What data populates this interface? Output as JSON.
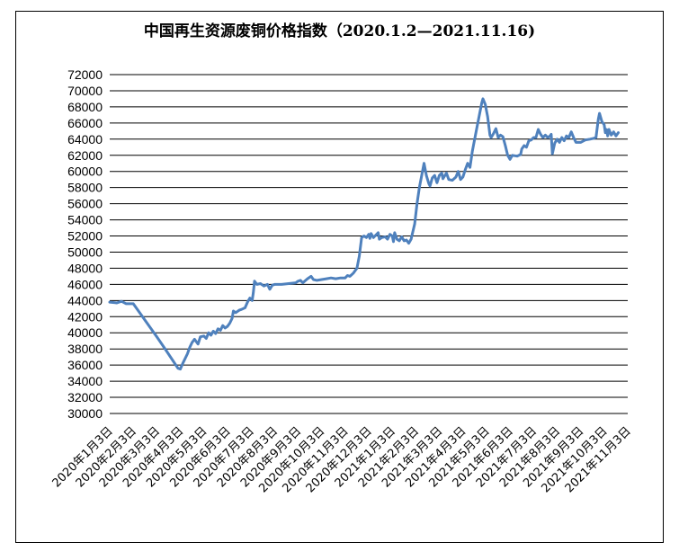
{
  "chart_data": {
    "type": "line",
    "title": "中国再生资源废铜价格指数（2020.1.2—2021.11.16)",
    "xlabel": "",
    "ylabel": "",
    "ylim": [
      30000,
      72000
    ],
    "yticks": [
      30000,
      32000,
      34000,
      36000,
      38000,
      40000,
      42000,
      44000,
      46000,
      48000,
      50000,
      52000,
      54000,
      56000,
      58000,
      60000,
      62000,
      64000,
      66000,
      68000,
      70000,
      72000
    ],
    "grid": true,
    "legend": "none",
    "line_color": "#4f81bd",
    "categories": [
      "2020年1月3日",
      "2020年2月3日",
      "2020年3月3日",
      "2020年4月3日",
      "2020年5月3日",
      "2020年6月3日",
      "2020年7月3日",
      "2020年8月3日",
      "2020年9月3日",
      "2020年10月3日",
      "2020年11月3日",
      "2020年12月3日",
      "2021年1月3日",
      "2021年2月3日",
      "2021年3月3日",
      "2021年4月3日",
      "2021年5月3日",
      "2021年6月3日",
      "2021年7月3日",
      "2021年8月3日",
      "2021年9月3日",
      "2021年10月3日",
      "2021年11月3日"
    ],
    "series": [
      {
        "values": [
          [
            0.0,
            43800
          ],
          [
            0.3,
            43700
          ],
          [
            0.5,
            43900
          ],
          [
            0.7,
            43600
          ],
          [
            1.0,
            43600
          ],
          [
            2.0,
            39500
          ],
          [
            2.4,
            37800
          ],
          [
            2.9,
            35600
          ],
          [
            3.0,
            35500
          ],
          [
            3.1,
            36200
          ],
          [
            3.3,
            37400
          ],
          [
            3.4,
            38200
          ],
          [
            3.5,
            38800
          ],
          [
            3.6,
            39200
          ],
          [
            3.75,
            38600
          ],
          [
            3.85,
            39500
          ],
          [
            4.0,
            39600
          ],
          [
            4.1,
            39300
          ],
          [
            4.2,
            40000
          ],
          [
            4.3,
            39700
          ],
          [
            4.4,
            40200
          ],
          [
            4.5,
            39900
          ],
          [
            4.6,
            40500
          ],
          [
            4.7,
            40300
          ],
          [
            4.8,
            40900
          ],
          [
            4.9,
            40600
          ],
          [
            5.0,
            40800
          ],
          [
            5.1,
            41200
          ],
          [
            5.2,
            41800
          ],
          [
            5.25,
            42700
          ],
          [
            5.35,
            42500
          ],
          [
            5.5,
            42800
          ],
          [
            5.6,
            42900
          ],
          [
            5.75,
            43100
          ],
          [
            5.85,
            43800
          ],
          [
            5.95,
            44300
          ],
          [
            6.05,
            44000
          ],
          [
            6.1,
            45000
          ],
          [
            6.15,
            46400
          ],
          [
            6.25,
            46000
          ],
          [
            6.4,
            46100
          ],
          [
            6.55,
            45800
          ],
          [
            6.7,
            46000
          ],
          [
            6.8,
            45400
          ],
          [
            6.9,
            45900
          ],
          [
            7.0,
            46000
          ],
          [
            7.3,
            46000
          ],
          [
            7.6,
            46100
          ],
          [
            7.9,
            46200
          ],
          [
            8.0,
            46400
          ],
          [
            8.1,
            46500
          ],
          [
            8.2,
            46200
          ],
          [
            8.4,
            46700
          ],
          [
            8.55,
            47000
          ],
          [
            8.65,
            46600
          ],
          [
            8.8,
            46500
          ],
          [
            9.0,
            46600
          ],
          [
            9.2,
            46700
          ],
          [
            9.4,
            46800
          ],
          [
            9.6,
            46700
          ],
          [
            9.8,
            46800
          ],
          [
            10.0,
            46800
          ],
          [
            10.1,
            47100
          ],
          [
            10.2,
            47000
          ],
          [
            10.35,
            47400
          ],
          [
            10.5,
            48000
          ],
          [
            10.6,
            49500
          ],
          [
            10.7,
            51800
          ],
          [
            10.8,
            52000
          ],
          [
            10.9,
            51800
          ],
          [
            11.0,
            52200
          ],
          [
            11.05,
            51700
          ],
          [
            11.1,
            52300
          ],
          [
            11.2,
            51800
          ],
          [
            11.3,
            52100
          ],
          [
            11.4,
            52400
          ],
          [
            11.45,
            51600
          ],
          [
            11.55,
            51800
          ],
          [
            11.7,
            51900
          ],
          [
            11.8,
            51600
          ],
          [
            11.9,
            52200
          ],
          [
            12.0,
            52000
          ],
          [
            12.05,
            51300
          ],
          [
            12.1,
            52400
          ],
          [
            12.2,
            51600
          ],
          [
            12.3,
            51400
          ],
          [
            12.4,
            51900
          ],
          [
            12.5,
            51400
          ],
          [
            12.6,
            51500
          ],
          [
            12.7,
            51100
          ],
          [
            12.8,
            51600
          ],
          [
            12.95,
            53500
          ],
          [
            13.05,
            56000
          ],
          [
            13.15,
            58000
          ],
          [
            13.25,
            59500
          ],
          [
            13.35,
            61000
          ],
          [
            13.45,
            59500
          ],
          [
            13.55,
            58500
          ],
          [
            13.6,
            58200
          ],
          [
            13.7,
            59200
          ],
          [
            13.8,
            59500
          ],
          [
            13.9,
            58600
          ],
          [
            14.0,
            59500
          ],
          [
            14.1,
            59800
          ],
          [
            14.15,
            59100
          ],
          [
            14.3,
            59800
          ],
          [
            14.4,
            59000
          ],
          [
            14.55,
            58900
          ],
          [
            14.7,
            59300
          ],
          [
            14.8,
            60000
          ],
          [
            14.9,
            59000
          ],
          [
            15.0,
            59300
          ],
          [
            15.1,
            60200
          ],
          [
            15.2,
            61000
          ],
          [
            15.3,
            60500
          ],
          [
            15.4,
            62500
          ],
          [
            15.6,
            65500
          ],
          [
            15.8,
            68500
          ],
          [
            15.85,
            69000
          ],
          [
            15.95,
            68300
          ],
          [
            16.05,
            66800
          ],
          [
            16.15,
            64500
          ],
          [
            16.2,
            64200
          ],
          [
            16.3,
            64700
          ],
          [
            16.4,
            65300
          ],
          [
            16.5,
            64200
          ],
          [
            16.6,
            64500
          ],
          [
            16.7,
            64300
          ],
          [
            16.8,
            63200
          ],
          [
            16.9,
            62000
          ],
          [
            17.0,
            61500
          ],
          [
            17.1,
            62000
          ],
          [
            17.3,
            61900
          ],
          [
            17.45,
            62100
          ],
          [
            17.5,
            62800
          ],
          [
            17.6,
            63200
          ],
          [
            17.7,
            63000
          ],
          [
            17.8,
            63800
          ],
          [
            17.9,
            63900
          ],
          [
            18.0,
            64200
          ],
          [
            18.1,
            64200
          ],
          [
            18.2,
            65200
          ],
          [
            18.3,
            64600
          ],
          [
            18.4,
            64200
          ],
          [
            18.5,
            64500
          ],
          [
            18.6,
            64200
          ],
          [
            18.7,
            64400
          ],
          [
            18.75,
            64600
          ],
          [
            18.8,
            62200
          ],
          [
            18.9,
            63500
          ],
          [
            19.0,
            64000
          ],
          [
            19.1,
            63600
          ],
          [
            19.2,
            64200
          ],
          [
            19.3,
            63800
          ],
          [
            19.4,
            64400
          ],
          [
            19.5,
            64200
          ],
          [
            19.6,
            64900
          ],
          [
            19.7,
            64200
          ],
          [
            19.8,
            63600
          ],
          [
            20.0,
            63600
          ],
          [
            20.2,
            63900
          ],
          [
            20.4,
            64000
          ],
          [
            20.55,
            64100
          ],
          [
            20.65,
            64200
          ],
          [
            20.75,
            66500
          ],
          [
            20.8,
            67200
          ],
          [
            20.9,
            66200
          ],
          [
            21.0,
            65800
          ],
          [
            21.05,
            64800
          ],
          [
            21.1,
            65200
          ],
          [
            21.15,
            64400
          ],
          [
            21.2,
            65200
          ],
          [
            21.3,
            64500
          ],
          [
            21.4,
            64900
          ],
          [
            21.5,
            64400
          ],
          [
            21.6,
            64800
          ]
        ]
      }
    ]
  }
}
